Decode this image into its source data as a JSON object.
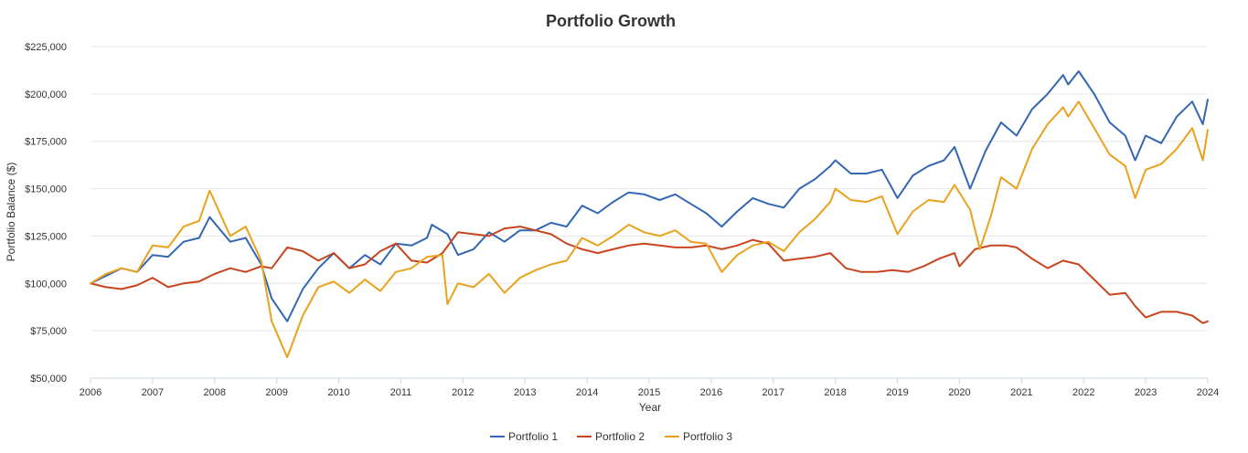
{
  "chart_data": {
    "type": "line",
    "title": "Portfolio Growth",
    "xlabel": "Year",
    "ylabel": "Portfolio Balance ($)",
    "ylim": [
      50000,
      225000
    ],
    "xlim": [
      2006.0,
      2024.0
    ],
    "grid": true,
    "legend_position": "bottom",
    "y_ticks": [
      50000,
      75000,
      100000,
      125000,
      150000,
      175000,
      200000,
      225000
    ],
    "y_tick_labels": [
      "$50,000",
      "$75,000",
      "$100,000",
      "$125,000",
      "$150,000",
      "$175,000",
      "$200,000",
      "$225,000"
    ],
    "x_ticks": [
      2006,
      2007,
      2008,
      2009,
      2010,
      2011,
      2012,
      2013,
      2014,
      2015,
      2016,
      2017,
      2018,
      2019,
      2020,
      2021,
      2022,
      2023,
      2024
    ],
    "x_tick_labels": [
      "2006",
      "2007",
      "2008",
      "2009",
      "2010",
      "2011",
      "2012",
      "2013",
      "2014",
      "2015",
      "2016",
      "2017",
      "2018",
      "2019",
      "2020",
      "2021",
      "2022",
      "2023",
      "2024"
    ],
    "series": [
      {
        "name": "Portfolio 1",
        "color": "#3366b3",
        "points": [
          [
            2006.0,
            100000
          ],
          [
            2006.25,
            104000
          ],
          [
            2006.5,
            108000
          ],
          [
            2006.75,
            106000
          ],
          [
            2007.0,
            115000
          ],
          [
            2007.25,
            114000
          ],
          [
            2007.5,
            122000
          ],
          [
            2007.75,
            124000
          ],
          [
            2007.92,
            135000
          ],
          [
            2008.25,
            122000
          ],
          [
            2008.5,
            124000
          ],
          [
            2008.75,
            110000
          ],
          [
            2008.92,
            92000
          ],
          [
            2009.17,
            80000
          ],
          [
            2009.42,
            97000
          ],
          [
            2009.67,
            108000
          ],
          [
            2009.92,
            116000
          ],
          [
            2010.17,
            108000
          ],
          [
            2010.42,
            115000
          ],
          [
            2010.67,
            110000
          ],
          [
            2010.92,
            121000
          ],
          [
            2011.17,
            120000
          ],
          [
            2011.42,
            124000
          ],
          [
            2011.5,
            131000
          ],
          [
            2011.75,
            126000
          ],
          [
            2011.92,
            115000
          ],
          [
            2012.17,
            118000
          ],
          [
            2012.42,
            127000
          ],
          [
            2012.67,
            122000
          ],
          [
            2012.92,
            128000
          ],
          [
            2013.17,
            128000
          ],
          [
            2013.42,
            132000
          ],
          [
            2013.67,
            130000
          ],
          [
            2013.92,
            141000
          ],
          [
            2014.17,
            137000
          ],
          [
            2014.42,
            143000
          ],
          [
            2014.67,
            148000
          ],
          [
            2014.92,
            147000
          ],
          [
            2015.17,
            144000
          ],
          [
            2015.42,
            147000
          ],
          [
            2015.67,
            142000
          ],
          [
            2015.92,
            137000
          ],
          [
            2016.17,
            130000
          ],
          [
            2016.42,
            138000
          ],
          [
            2016.67,
            145000
          ],
          [
            2016.92,
            142000
          ],
          [
            2017.17,
            140000
          ],
          [
            2017.42,
            150000
          ],
          [
            2017.67,
            155000
          ],
          [
            2017.92,
            162000
          ],
          [
            2018.0,
            165000
          ],
          [
            2018.25,
            158000
          ],
          [
            2018.5,
            158000
          ],
          [
            2018.75,
            160000
          ],
          [
            2019.0,
            145000
          ],
          [
            2019.25,
            157000
          ],
          [
            2019.5,
            162000
          ],
          [
            2019.75,
            165000
          ],
          [
            2019.92,
            172000
          ],
          [
            2020.17,
            150000
          ],
          [
            2020.42,
            170000
          ],
          [
            2020.67,
            185000
          ],
          [
            2020.92,
            178000
          ],
          [
            2021.17,
            192000
          ],
          [
            2021.42,
            200000
          ],
          [
            2021.67,
            210000
          ],
          [
            2021.75,
            205000
          ],
          [
            2021.92,
            212000
          ],
          [
            2022.17,
            200000
          ],
          [
            2022.42,
            185000
          ],
          [
            2022.67,
            178000
          ],
          [
            2022.83,
            165000
          ],
          [
            2023.0,
            178000
          ],
          [
            2023.25,
            174000
          ],
          [
            2023.5,
            188000
          ],
          [
            2023.75,
            196000
          ],
          [
            2023.92,
            184000
          ],
          [
            2024.0,
            197000
          ]
        ]
      },
      {
        "name": "Portfolio 2",
        "color": "#c8441e",
        "points": [
          [
            2006.0,
            100000
          ],
          [
            2006.25,
            98000
          ],
          [
            2006.5,
            97000
          ],
          [
            2006.75,
            99000
          ],
          [
            2007.0,
            103000
          ],
          [
            2007.25,
            98000
          ],
          [
            2007.5,
            100000
          ],
          [
            2007.75,
            101000
          ],
          [
            2008.0,
            105000
          ],
          [
            2008.25,
            108000
          ],
          [
            2008.5,
            106000
          ],
          [
            2008.75,
            109000
          ],
          [
            2008.92,
            108000
          ],
          [
            2009.17,
            119000
          ],
          [
            2009.42,
            117000
          ],
          [
            2009.67,
            112000
          ],
          [
            2009.92,
            116000
          ],
          [
            2010.17,
            108000
          ],
          [
            2010.42,
            110000
          ],
          [
            2010.67,
            117000
          ],
          [
            2010.92,
            121000
          ],
          [
            2011.17,
            112000
          ],
          [
            2011.42,
            111000
          ],
          [
            2011.67,
            116000
          ],
          [
            2011.92,
            127000
          ],
          [
            2012.17,
            126000
          ],
          [
            2012.42,
            125000
          ],
          [
            2012.67,
            129000
          ],
          [
            2012.92,
            130000
          ],
          [
            2013.17,
            128000
          ],
          [
            2013.42,
            126000
          ],
          [
            2013.67,
            121000
          ],
          [
            2013.92,
            118000
          ],
          [
            2014.17,
            116000
          ],
          [
            2014.42,
            118000
          ],
          [
            2014.67,
            120000
          ],
          [
            2014.92,
            121000
          ],
          [
            2015.17,
            120000
          ],
          [
            2015.42,
            119000
          ],
          [
            2015.67,
            119000
          ],
          [
            2015.92,
            120000
          ],
          [
            2016.17,
            118000
          ],
          [
            2016.42,
            120000
          ],
          [
            2016.67,
            123000
          ],
          [
            2016.92,
            121000
          ],
          [
            2017.17,
            112000
          ],
          [
            2017.42,
            113000
          ],
          [
            2017.67,
            114000
          ],
          [
            2017.92,
            116000
          ],
          [
            2018.17,
            108000
          ],
          [
            2018.42,
            106000
          ],
          [
            2018.67,
            106000
          ],
          [
            2018.92,
            107000
          ],
          [
            2019.17,
            106000
          ],
          [
            2019.42,
            109000
          ],
          [
            2019.67,
            113000
          ],
          [
            2019.92,
            116000
          ],
          [
            2020.0,
            109000
          ],
          [
            2020.25,
            118000
          ],
          [
            2020.5,
            120000
          ],
          [
            2020.75,
            120000
          ],
          [
            2020.92,
            119000
          ],
          [
            2021.17,
            113000
          ],
          [
            2021.42,
            108000
          ],
          [
            2021.67,
            112000
          ],
          [
            2021.92,
            110000
          ],
          [
            2022.17,
            102000
          ],
          [
            2022.42,
            94000
          ],
          [
            2022.67,
            95000
          ],
          [
            2022.83,
            88000
          ],
          [
            2023.0,
            82000
          ],
          [
            2023.25,
            85000
          ],
          [
            2023.5,
            85000
          ],
          [
            2023.75,
            83000
          ],
          [
            2023.92,
            79000
          ],
          [
            2024.0,
            80000
          ]
        ]
      },
      {
        "name": "Portfolio 3",
        "color": "#eaa11c",
        "points": [
          [
            2006.0,
            100000
          ],
          [
            2006.25,
            105000
          ],
          [
            2006.5,
            108000
          ],
          [
            2006.75,
            106000
          ],
          [
            2007.0,
            120000
          ],
          [
            2007.25,
            119000
          ],
          [
            2007.5,
            130000
          ],
          [
            2007.75,
            133000
          ],
          [
            2007.92,
            149000
          ],
          [
            2008.25,
            125000
          ],
          [
            2008.5,
            130000
          ],
          [
            2008.75,
            112000
          ],
          [
            2008.92,
            80000
          ],
          [
            2009.17,
            61000
          ],
          [
            2009.42,
            83000
          ],
          [
            2009.67,
            98000
          ],
          [
            2009.92,
            101000
          ],
          [
            2010.17,
            95000
          ],
          [
            2010.42,
            102000
          ],
          [
            2010.67,
            96000
          ],
          [
            2010.92,
            106000
          ],
          [
            2011.17,
            108000
          ],
          [
            2011.42,
            114000
          ],
          [
            2011.67,
            115000
          ],
          [
            2011.75,
            89000
          ],
          [
            2011.92,
            100000
          ],
          [
            2012.17,
            98000
          ],
          [
            2012.42,
            105000
          ],
          [
            2012.67,
            95000
          ],
          [
            2012.92,
            103000
          ],
          [
            2013.17,
            107000
          ],
          [
            2013.42,
            110000
          ],
          [
            2013.67,
            112000
          ],
          [
            2013.92,
            124000
          ],
          [
            2014.17,
            120000
          ],
          [
            2014.42,
            125000
          ],
          [
            2014.67,
            131000
          ],
          [
            2014.92,
            127000
          ],
          [
            2015.17,
            125000
          ],
          [
            2015.42,
            128000
          ],
          [
            2015.67,
            122000
          ],
          [
            2015.92,
            121000
          ],
          [
            2016.17,
            106000
          ],
          [
            2016.42,
            115000
          ],
          [
            2016.67,
            120000
          ],
          [
            2016.92,
            122000
          ],
          [
            2017.17,
            117000
          ],
          [
            2017.42,
            127000
          ],
          [
            2017.67,
            134000
          ],
          [
            2017.92,
            143000
          ],
          [
            2018.0,
            150000
          ],
          [
            2018.25,
            144000
          ],
          [
            2018.5,
            143000
          ],
          [
            2018.75,
            146000
          ],
          [
            2019.0,
            126000
          ],
          [
            2019.25,
            138000
          ],
          [
            2019.5,
            144000
          ],
          [
            2019.75,
            143000
          ],
          [
            2019.92,
            152000
          ],
          [
            2020.17,
            139000
          ],
          [
            2020.33,
            118000
          ],
          [
            2020.5,
            135000
          ],
          [
            2020.67,
            156000
          ],
          [
            2020.92,
            150000
          ],
          [
            2021.17,
            171000
          ],
          [
            2021.42,
            184000
          ],
          [
            2021.67,
            193000
          ],
          [
            2021.75,
            188000
          ],
          [
            2021.92,
            196000
          ],
          [
            2022.17,
            182000
          ],
          [
            2022.42,
            168000
          ],
          [
            2022.67,
            162000
          ],
          [
            2022.83,
            145000
          ],
          [
            2023.0,
            160000
          ],
          [
            2023.25,
            163000
          ],
          [
            2023.5,
            171000
          ],
          [
            2023.75,
            182000
          ],
          [
            2023.92,
            165000
          ],
          [
            2024.0,
            181000
          ]
        ]
      }
    ]
  }
}
